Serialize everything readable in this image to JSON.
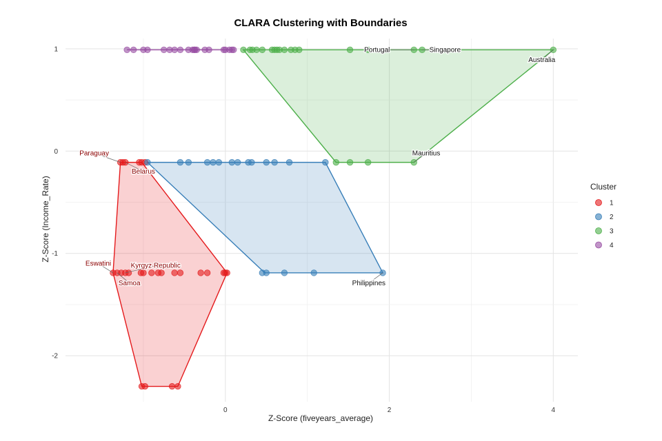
{
  "chart_data": {
    "type": "scatter",
    "title": "CLARA Clustering with Boundaries",
    "xlabel": "Z-Score (fiveyears_average)",
    "ylabel": "Z-Score (Income_Rate)",
    "xlim": [
      -1.95,
      4.3
    ],
    "ylim": [
      -2.45,
      1.1
    ],
    "x_ticks": [
      0,
      2,
      4
    ],
    "y_ticks": [
      -2,
      -1,
      0,
      1
    ],
    "grid": true,
    "legend": {
      "title": "Cluster",
      "position": "right",
      "entries": [
        "1",
        "2",
        "3",
        "4"
      ]
    },
    "colors": {
      "1": "#E41A1C",
      "2": "#377EB8",
      "3": "#4DAF4A",
      "4": "#984EA3"
    },
    "series": [
      {
        "name": "1",
        "hull": [
          [
            -1.28,
            -0.11
          ],
          [
            -1.02,
            -0.11
          ],
          [
            0.02,
            -1.19
          ],
          [
            -0.58,
            -2.3
          ],
          [
            -1.02,
            -2.3
          ],
          [
            -1.37,
            -1.19
          ]
        ],
        "points": [
          [
            -1.28,
            -0.11
          ],
          [
            -1.25,
            -0.11
          ],
          [
            -1.22,
            -0.11
          ],
          [
            -1.05,
            -0.11
          ],
          [
            -1.02,
            -0.11
          ],
          [
            -0.98,
            -0.11
          ],
          [
            -1.37,
            -1.19
          ],
          [
            -1.32,
            -1.19
          ],
          [
            -1.27,
            -1.19
          ],
          [
            -1.22,
            -1.19
          ],
          [
            -1.18,
            -1.19
          ],
          [
            -1.03,
            -1.19
          ],
          [
            -1.0,
            -1.19
          ],
          [
            -0.9,
            -1.19
          ],
          [
            -0.82,
            -1.19
          ],
          [
            -0.78,
            -1.19
          ],
          [
            -0.62,
            -1.19
          ],
          [
            -0.55,
            -1.19
          ],
          [
            -0.3,
            -1.19
          ],
          [
            -0.22,
            -1.19
          ],
          [
            -0.02,
            -1.19
          ],
          [
            0.0,
            -1.19
          ],
          [
            0.02,
            -1.19
          ],
          [
            -1.02,
            -2.3
          ],
          [
            -0.98,
            -2.3
          ],
          [
            -0.65,
            -2.3
          ],
          [
            -0.58,
            -2.3
          ]
        ]
      },
      {
        "name": "2",
        "hull": [
          [
            -0.95,
            -0.11
          ],
          [
            1.22,
            -0.11
          ],
          [
            1.92,
            -1.19
          ],
          [
            0.48,
            -1.19
          ]
        ],
        "points": [
          [
            -0.95,
            -0.11
          ],
          [
            -0.55,
            -0.11
          ],
          [
            -0.45,
            -0.11
          ],
          [
            -0.22,
            -0.11
          ],
          [
            -0.15,
            -0.11
          ],
          [
            -0.08,
            -0.11
          ],
          [
            0.08,
            -0.11
          ],
          [
            0.15,
            -0.11
          ],
          [
            0.28,
            -0.11
          ],
          [
            0.32,
            -0.11
          ],
          [
            0.5,
            -0.11
          ],
          [
            0.6,
            -0.11
          ],
          [
            0.78,
            -0.11
          ],
          [
            1.22,
            -0.11
          ],
          [
            0.45,
            -1.19
          ],
          [
            0.5,
            -1.19
          ],
          [
            0.72,
            -1.19
          ],
          [
            1.08,
            -1.19
          ],
          [
            1.92,
            -1.19
          ]
        ]
      },
      {
        "name": "3",
        "hull": [
          [
            0.22,
            0.99
          ],
          [
            4.0,
            0.99
          ],
          [
            2.3,
            -0.11
          ],
          [
            1.35,
            -0.11
          ]
        ],
        "points": [
          [
            0.22,
            0.99
          ],
          [
            0.3,
            0.99
          ],
          [
            0.33,
            0.99
          ],
          [
            0.38,
            0.99
          ],
          [
            0.45,
            0.99
          ],
          [
            0.57,
            0.99
          ],
          [
            0.6,
            0.99
          ],
          [
            0.63,
            0.99
          ],
          [
            0.66,
            0.99
          ],
          [
            0.72,
            0.99
          ],
          [
            0.8,
            0.99
          ],
          [
            0.85,
            0.99
          ],
          [
            0.9,
            0.99
          ],
          [
            1.52,
            0.99
          ],
          [
            1.74,
            0.99
          ],
          [
            2.3,
            0.99
          ],
          [
            2.4,
            0.99
          ],
          [
            4.0,
            0.99
          ],
          [
            1.35,
            -0.11
          ],
          [
            1.52,
            -0.11
          ],
          [
            1.74,
            -0.11
          ],
          [
            2.3,
            -0.11
          ]
        ]
      },
      {
        "name": "4",
        "hull": [
          [
            -1.2,
            0.99
          ],
          [
            0.1,
            0.99
          ]
        ],
        "points": [
          [
            -1.2,
            0.99
          ],
          [
            -1.12,
            0.99
          ],
          [
            -1.0,
            0.99
          ],
          [
            -0.95,
            0.99
          ],
          [
            -0.75,
            0.99
          ],
          [
            -0.68,
            0.99
          ],
          [
            -0.62,
            0.99
          ],
          [
            -0.55,
            0.99
          ],
          [
            -0.45,
            0.99
          ],
          [
            -0.4,
            0.99
          ],
          [
            -0.38,
            0.99
          ],
          [
            -0.37,
            0.99
          ],
          [
            -0.35,
            0.99
          ],
          [
            -0.25,
            0.99
          ],
          [
            -0.2,
            0.99
          ],
          [
            -0.02,
            0.99
          ],
          [
            0.0,
            0.99
          ],
          [
            0.05,
            0.99
          ],
          [
            0.08,
            0.99
          ],
          [
            0.1,
            0.99
          ]
        ]
      }
    ],
    "annotations": [
      {
        "label": "Paraguay",
        "cluster": "1",
        "x": -1.28,
        "y": -0.11,
        "lx": -1.6,
        "ly": -0.02
      },
      {
        "label": "Belarus",
        "cluster": "1",
        "x": -1.22,
        "y": -0.11,
        "lx": -1.0,
        "ly": -0.2
      },
      {
        "label": "Eswatini",
        "cluster": "1",
        "x": -1.37,
        "y": -1.19,
        "lx": -1.55,
        "ly": -1.1
      },
      {
        "label": "Kyrgyz Republic",
        "cluster": "1",
        "x": -1.22,
        "y": -1.19,
        "lx": -0.85,
        "ly": -1.12
      },
      {
        "label": "Samoa",
        "cluster": "1",
        "x": -1.32,
        "y": -1.19,
        "lx": -1.17,
        "ly": -1.29
      },
      {
        "label": "Philippines",
        "cluster": "2",
        "x": 1.92,
        "y": -1.19,
        "lx": 1.75,
        "ly": -1.29
      },
      {
        "label": "Portugal",
        "cluster": "3",
        "x": 2.3,
        "y": 0.99,
        "lx": 1.85,
        "ly": 0.99
      },
      {
        "label": "Singapore",
        "cluster": "3",
        "x": 2.4,
        "y": 0.99,
        "lx": 2.68,
        "ly": 0.99
      },
      {
        "label": "Australia",
        "cluster": "3",
        "x": 4.0,
        "y": 0.99,
        "lx": 3.86,
        "ly": 0.89
      },
      {
        "label": "Mauritius",
        "cluster": "3",
        "x": 2.3,
        "y": -0.11,
        "lx": 2.45,
        "ly": -0.02
      }
    ]
  }
}
